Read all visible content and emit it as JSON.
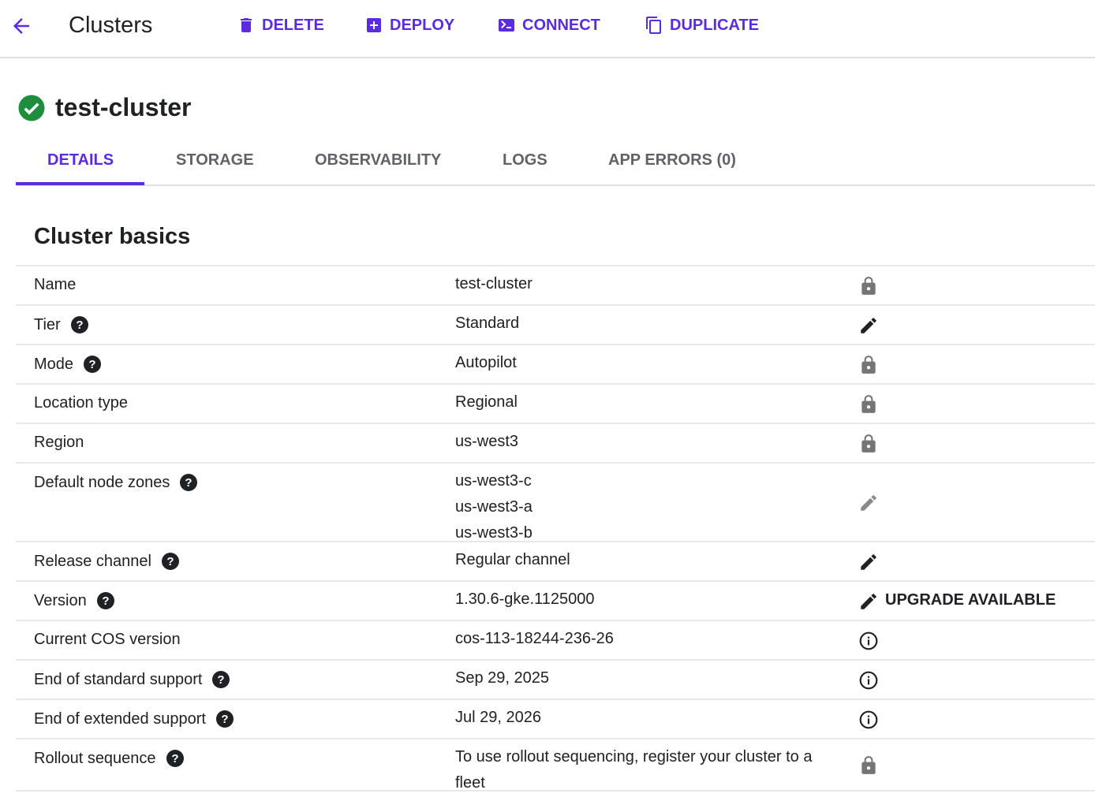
{
  "header": {
    "title": "Clusters",
    "actions": [
      {
        "label": "DELETE",
        "icon": "trash-icon"
      },
      {
        "label": "DEPLOY",
        "icon": "add-box-icon"
      },
      {
        "label": "CONNECT",
        "icon": "terminal-icon"
      },
      {
        "label": "DUPLICATE",
        "icon": "copy-icon"
      }
    ]
  },
  "cluster": {
    "name": "test-cluster",
    "status": "running"
  },
  "tabs": [
    {
      "label": "DETAILS",
      "active": true
    },
    {
      "label": "STORAGE"
    },
    {
      "label": "OBSERVABILITY"
    },
    {
      "label": "LOGS"
    },
    {
      "label": "APP ERRORS (0)"
    }
  ],
  "section": {
    "title": "Cluster basics"
  },
  "rows": [
    {
      "label": "Name",
      "value": "test-cluster",
      "icon": "lock"
    },
    {
      "label": "Tier",
      "value": "Standard",
      "icon": "edit",
      "help": true
    },
    {
      "label": "Mode",
      "value": "Autopilot",
      "icon": "lock",
      "help": true
    },
    {
      "label": "Location type",
      "value": "Regional",
      "icon": "lock"
    },
    {
      "label": "Region",
      "value": "us-west3",
      "icon": "lock"
    },
    {
      "label": "Default node zones",
      "values": [
        "us-west3-c",
        "us-west3-a",
        "us-west3-b"
      ],
      "icon": "edit-disabled",
      "help": true
    },
    {
      "label": "Release channel",
      "value": "Regular channel",
      "icon": "edit",
      "help": true
    },
    {
      "label": "Version",
      "value": "1.30.6-gke.1125000",
      "icon": "edit",
      "help": true,
      "action": "UPGRADE AVAILABLE"
    },
    {
      "label": "Current COS version",
      "value": "cos-113-18244-236-26",
      "icon": "info"
    },
    {
      "label": "End of standard support",
      "value": "Sep 29, 2025",
      "icon": "info",
      "help": true
    },
    {
      "label": "End of extended support",
      "value": "Jul 29, 2026",
      "icon": "info",
      "help": true
    },
    {
      "label": "Rollout sequence",
      "value": "To use rollout sequencing, register your cluster to a fleet",
      "icon": "lock",
      "help": true
    }
  ],
  "colors": {
    "accent": "#5b2be0",
    "success": "#1e8e3e"
  }
}
